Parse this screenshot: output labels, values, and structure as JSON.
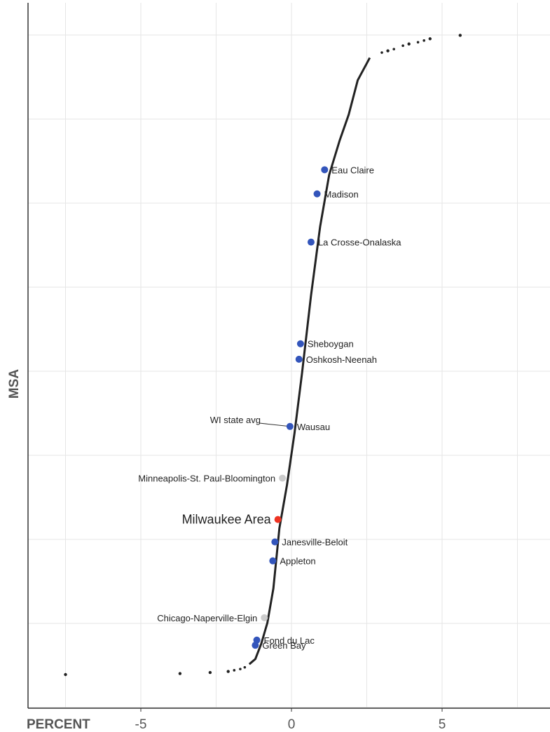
{
  "chart_data": {
    "type": "scatter",
    "title": "",
    "xlabel": "PERCENT",
    "ylabel": "MSA",
    "xlim": [
      -8.5,
      8.2
    ],
    "x_ticks": [
      -5,
      0,
      5
    ],
    "x_tick_labels": [
      "-5",
      "0",
      "5"
    ],
    "x_minor_gridlines": [
      -7.5,
      -2.5,
      2.5,
      7.5
    ],
    "grid": true,
    "y_axis_tick_labels": false,
    "series": [
      {
        "description": "all MSAs, sorted",
        "color": "#222222",
        "points": [
          {
            "x": -7.5,
            "rank": 0
          },
          {
            "x": -3.7,
            "rank": 0.6
          },
          {
            "x": -2.7,
            "rank": 1.2
          },
          {
            "x": -2.1,
            "rank": 1.8
          },
          {
            "x": -1.4,
            "rank": 6
          },
          {
            "x": -1.2,
            "rank": 9
          },
          {
            "x": -1.0,
            "rank": 18
          },
          {
            "x": -0.8,
            "rank": 30
          },
          {
            "x": -0.6,
            "rank": 50
          },
          {
            "x": -0.4,
            "rank": 85
          },
          {
            "x": -0.15,
            "rank": 110
          },
          {
            "x": 0.1,
            "rank": 140
          },
          {
            "x": 0.35,
            "rank": 175
          },
          {
            "x": 0.65,
            "rank": 220
          },
          {
            "x": 0.95,
            "rank": 260
          },
          {
            "x": 1.25,
            "rank": 290
          },
          {
            "x": 1.6,
            "rank": 310
          },
          {
            "x": 1.9,
            "rank": 325
          },
          {
            "x": 2.2,
            "rank": 345
          },
          {
            "x": 2.6,
            "rank": 358
          },
          {
            "x": 3.2,
            "rank": 362
          },
          {
            "x": 3.9,
            "rank": 366
          },
          {
            "x": 4.6,
            "rank": 369
          },
          {
            "x": 5.6,
            "rank": 371
          }
        ]
      }
    ],
    "labeled_points": [
      {
        "label": "Eau Claire",
        "x": 1.1,
        "rank": 293,
        "color": "#3355bb"
      },
      {
        "label": "Madison",
        "x": 0.85,
        "rank": 279,
        "color": "#3355bb"
      },
      {
        "label": "La Crosse-Onalaska",
        "x": 0.65,
        "rank": 251,
        "color": "#3355bb"
      },
      {
        "label": "Sheboygan",
        "x": 0.3,
        "rank": 192,
        "color": "#3355bb"
      },
      {
        "label": "Oshkosh-Neenah",
        "x": 0.25,
        "rank": 183,
        "color": "#3355bb"
      },
      {
        "label": "Wausau",
        "x": -0.05,
        "rank": 144,
        "color": "#3355bb"
      },
      {
        "label": "Minneapolis-St. Paul-Bloomington",
        "x": -0.3,
        "rank": 114,
        "color": "#cccccc"
      },
      {
        "label": "Milwaukee Area",
        "x": -0.45,
        "rank": 90,
        "color": "#ee3322"
      },
      {
        "label": "Janesville-Beloit",
        "x": -0.55,
        "rank": 77,
        "color": "#3355bb"
      },
      {
        "label": "Appleton",
        "x": -0.62,
        "rank": 66,
        "color": "#3355bb"
      },
      {
        "label": "Chicago-Naperville-Elgin",
        "x": -0.9,
        "rank": 33,
        "color": "#cccccc"
      },
      {
        "label": "Fond du Lac",
        "x": -1.15,
        "rank": 20,
        "color": "#3355bb"
      },
      {
        "label": "Green Bay",
        "x": -1.2,
        "rank": 17,
        "color": "#3355bb"
      }
    ],
    "annotation": {
      "label": "WI state avg",
      "points_to": "Wausau"
    }
  }
}
